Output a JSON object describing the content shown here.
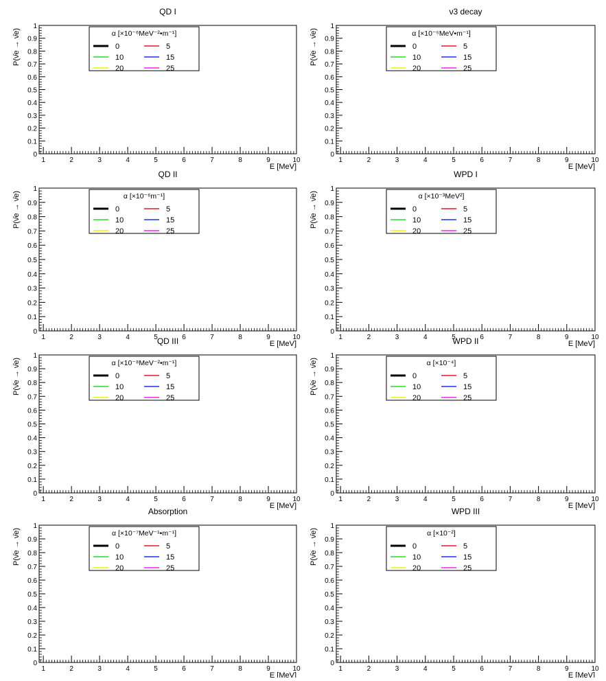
{
  "figure": {
    "x_axis_label": "E [MeV]",
    "y_axis_label": "P(ν̄e → ν̄e)",
    "legend_values": [
      "0",
      "5",
      "10",
      "15",
      "20",
      "25"
    ],
    "x_ticks": [
      "1",
      "2",
      "3",
      "4",
      "5",
      "6",
      "7",
      "8",
      "9",
      "10"
    ],
    "y_ticks": [
      "0",
      "0.1",
      "0.2",
      "0.3",
      "0.4",
      "0.5",
      "0.6",
      "0.7",
      "0.8",
      "0.9",
      "1"
    ],
    "series_colors": [
      "#000000",
      "#e31a1c",
      "#22dd22",
      "#1133ee",
      "#f2ee00",
      "#ee22ee"
    ]
  },
  "chart_data": [
    {
      "id": "qd1",
      "type": "line",
      "title": "QD I",
      "legend_title": "α [×10⁻⁶MeV⁻²•m⁻¹]",
      "xlabel": "E [MeV]",
      "ylabel": "P(ν̄e → ν̄e)",
      "xlim": [
        0.85,
        10
      ],
      "ylim": [
        0,
        1
      ],
      "series": [
        {
          "name": "0",
          "color": "#000000",
          "model": "qd1",
          "param": 0
        },
        {
          "name": "5",
          "color": "#e31a1c",
          "model": "qd1",
          "param": 5
        },
        {
          "name": "10",
          "color": "#22dd22",
          "model": "qd1",
          "param": 10
        },
        {
          "name": "15",
          "color": "#1133ee",
          "model": "qd1",
          "param": 15
        },
        {
          "name": "20",
          "color": "#f2ee00",
          "model": "qd1",
          "param": 20
        },
        {
          "name": "25",
          "color": "#ee22ee",
          "model": "qd1",
          "param": 25
        }
      ]
    },
    {
      "id": "nu3",
      "type": "line",
      "title": "ν3 decay",
      "legend_title": "α [×10⁻⁵MeV•m⁻¹]",
      "xlabel": "E [MeV]",
      "ylabel": "P(ν̄e → ν̄e)",
      "xlim": [
        0.85,
        10
      ],
      "ylim": [
        0,
        1
      ],
      "series": [
        {
          "name": "0",
          "color": "#000000",
          "model": "nu3",
          "param": 0
        },
        {
          "name": "5",
          "color": "#e31a1c",
          "model": "nu3",
          "param": 5
        },
        {
          "name": "10",
          "color": "#22dd22",
          "model": "nu3",
          "param": 10
        },
        {
          "name": "15",
          "color": "#1133ee",
          "model": "nu3",
          "param": 15
        },
        {
          "name": "20",
          "color": "#f2ee00",
          "model": "nu3",
          "param": 20
        },
        {
          "name": "25",
          "color": "#ee22ee",
          "model": "nu3",
          "param": 25
        }
      ]
    },
    {
      "id": "qd2",
      "type": "line",
      "title": "QD II",
      "legend_title": "α [×10⁻⁶m⁻¹]",
      "xlabel": "E [MeV]",
      "ylabel": "P(ν̄e → ν̄e)",
      "xlim": [
        0.85,
        10
      ],
      "ylim": [
        0,
        1
      ],
      "series": [
        {
          "name": "0",
          "color": "#000000",
          "model": "qd2",
          "param": 0
        },
        {
          "name": "5",
          "color": "#e31a1c",
          "model": "qd2",
          "param": 5
        },
        {
          "name": "10",
          "color": "#22dd22",
          "model": "qd2",
          "param": 10
        },
        {
          "name": "15",
          "color": "#1133ee",
          "model": "qd2",
          "param": 15
        },
        {
          "name": "20",
          "color": "#f2ee00",
          "model": "qd2",
          "param": 20
        },
        {
          "name": "25",
          "color": "#ee22ee",
          "model": "qd2",
          "param": 25
        }
      ]
    },
    {
      "id": "wpd1",
      "type": "line",
      "title": "WPD I",
      "legend_title": "α [×10⁻³MeV²]",
      "xlabel": "E [MeV]",
      "ylabel": "P(ν̄e → ν̄e)",
      "xlim": [
        0.85,
        10
      ],
      "ylim": [
        0,
        1
      ],
      "series": [
        {
          "name": "0",
          "color": "#000000",
          "model": "wpd1",
          "param": 0
        },
        {
          "name": "5",
          "color": "#e31a1c",
          "model": "wpd1",
          "param": 5
        },
        {
          "name": "10",
          "color": "#22dd22",
          "model": "wpd1",
          "param": 10
        },
        {
          "name": "15",
          "color": "#1133ee",
          "model": "wpd1",
          "param": 15
        },
        {
          "name": "20",
          "color": "#f2ee00",
          "model": "wpd1",
          "param": 20
        },
        {
          "name": "25",
          "color": "#ee22ee",
          "model": "wpd1",
          "param": 25
        }
      ]
    },
    {
      "id": "qd3",
      "type": "line",
      "title": "QD III",
      "legend_title": "α [×10⁻⁸MeV⁻²•m⁻¹]",
      "xlabel": "E [MeV]",
      "ylabel": "P(ν̄e → ν̄e)",
      "xlim": [
        0.85,
        10
      ],
      "ylim": [
        0,
        1
      ],
      "series": [
        {
          "name": "0",
          "color": "#000000",
          "model": "qd3",
          "param": 0
        },
        {
          "name": "5",
          "color": "#e31a1c",
          "model": "qd3",
          "param": 5
        },
        {
          "name": "10",
          "color": "#22dd22",
          "model": "qd3",
          "param": 10
        },
        {
          "name": "15",
          "color": "#1133ee",
          "model": "qd3",
          "param": 15
        },
        {
          "name": "20",
          "color": "#f2ee00",
          "model": "qd3",
          "param": 20
        },
        {
          "name": "25",
          "color": "#ee22ee",
          "model": "qd3",
          "param": 25
        }
      ]
    },
    {
      "id": "wpd2",
      "type": "line",
      "title": "WPD II",
      "legend_title": "α [×10⁻⁴]",
      "xlabel": "E [MeV]",
      "ylabel": "P(ν̄e → ν̄e)",
      "xlim": [
        0.85,
        10
      ],
      "ylim": [
        0,
        1
      ],
      "series": [
        {
          "name": "0",
          "color": "#000000",
          "model": "wpd2",
          "param": 0
        },
        {
          "name": "5",
          "color": "#e31a1c",
          "model": "wpd2",
          "param": 5
        },
        {
          "name": "10",
          "color": "#22dd22",
          "model": "wpd2",
          "param": 10
        },
        {
          "name": "15",
          "color": "#1133ee",
          "model": "wpd2",
          "param": 15
        },
        {
          "name": "20",
          "color": "#f2ee00",
          "model": "wpd2",
          "param": 20
        },
        {
          "name": "25",
          "color": "#ee22ee",
          "model": "wpd2",
          "param": 25
        }
      ]
    },
    {
      "id": "abs",
      "type": "line",
      "title": "Absorption",
      "legend_title": "α [×10⁻⁷MeV⁻¹•m⁻¹]",
      "xlabel": "E [MeV]",
      "ylabel": "P(ν̄e → ν̄e)",
      "xlim": [
        0.85,
        10
      ],
      "ylim": [
        0,
        1
      ],
      "series": [
        {
          "name": "0",
          "color": "#000000",
          "model": "abs",
          "param": 0
        },
        {
          "name": "5",
          "color": "#e31a1c",
          "model": "abs",
          "param": 5
        },
        {
          "name": "10",
          "color": "#22dd22",
          "model": "abs",
          "param": 10
        },
        {
          "name": "15",
          "color": "#1133ee",
          "model": "abs",
          "param": 15
        },
        {
          "name": "20",
          "color": "#f2ee00",
          "model": "abs",
          "param": 20
        },
        {
          "name": "25",
          "color": "#ee22ee",
          "model": "abs",
          "param": 25
        }
      ]
    },
    {
      "id": "wpd3",
      "type": "line",
      "title": "WPD III",
      "legend_title": "α [×10⁻²]",
      "xlabel": "E [MeV]",
      "ylabel": "P(ν̄e → ν̄e)",
      "xlim": [
        0.85,
        10
      ],
      "ylim": [
        0,
        1
      ],
      "series": [
        {
          "name": "0",
          "color": "#000000",
          "model": "wpd3",
          "param": 0
        },
        {
          "name": "5",
          "color": "#e31a1c",
          "model": "wpd3",
          "param": 5
        },
        {
          "name": "10",
          "color": "#22dd22",
          "model": "wpd3",
          "param": 10
        },
        {
          "name": "15",
          "color": "#1133ee",
          "model": "wpd3",
          "param": 15
        },
        {
          "name": "20",
          "color": "#f2ee00",
          "model": "wpd3",
          "param": 20
        },
        {
          "name": "25",
          "color": "#ee22ee",
          "model": "wpd3",
          "param": 25
        }
      ]
    }
  ]
}
